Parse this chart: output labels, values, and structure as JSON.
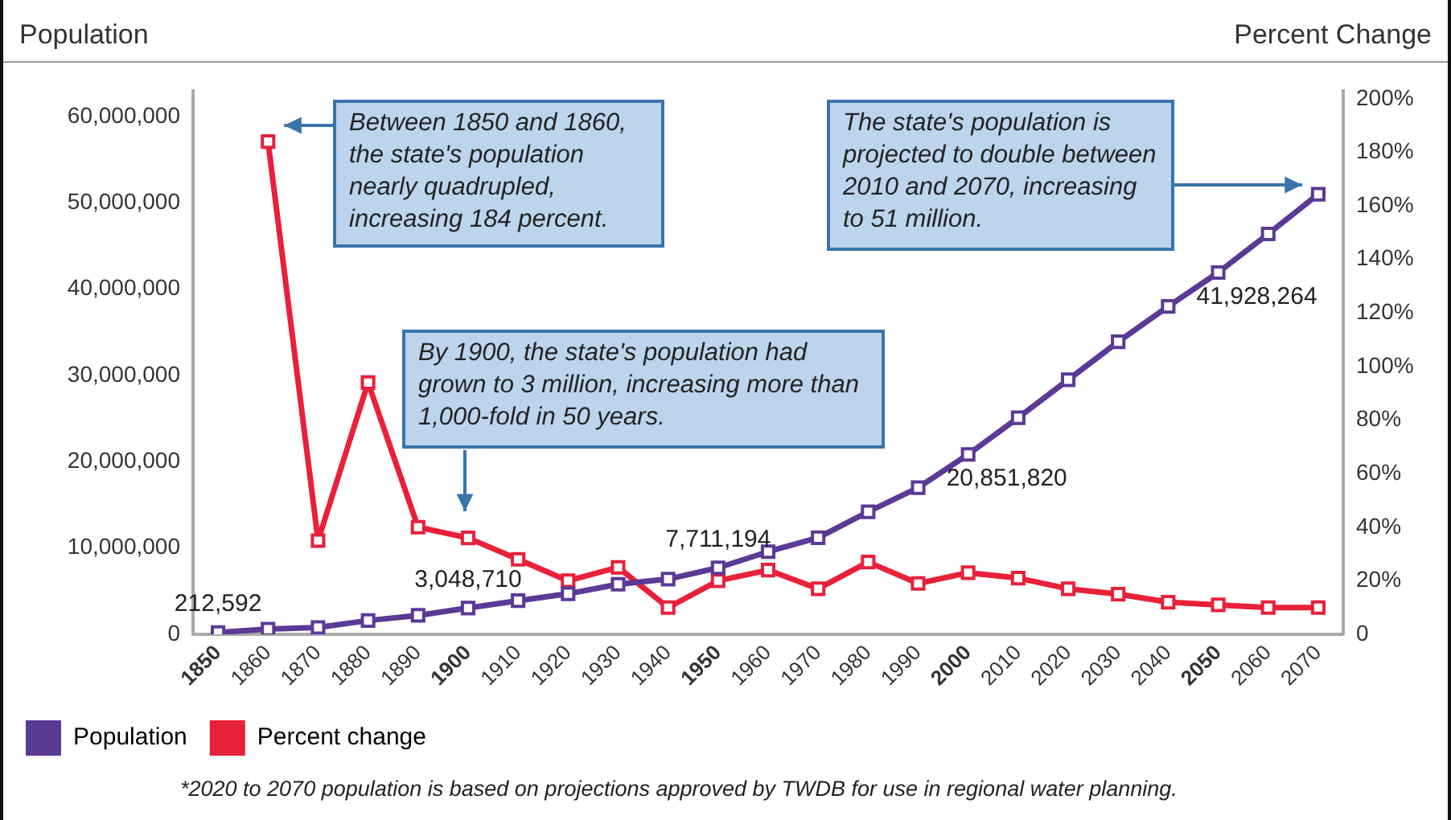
{
  "chart_data": {
    "type": "line",
    "ylabel": "Population",
    "y2label": "Percent Change",
    "categories": [
      "1850",
      "1860",
      "1870",
      "1880",
      "1890",
      "1900",
      "1910",
      "1920",
      "1930",
      "1940",
      "1950",
      "1960",
      "1970",
      "1980",
      "1990",
      "2000",
      "2010",
      "2020",
      "2030",
      "2040",
      "2050",
      "2060",
      "2070"
    ],
    "series": [
      {
        "name": "Population",
        "color": "#5b3a96",
        "values": [
          212592,
          600000,
          800000,
          1600000,
          2200000,
          3048710,
          3900000,
          4700000,
          5800000,
          6400000,
          7711194,
          9580000,
          11200000,
          14200000,
          17000000,
          20851820,
          25100000,
          29500000,
          33900000,
          38000000,
          41928264,
          46400000,
          51000000
        ],
        "value_labels": [
          "212,592",
          null,
          null,
          null,
          null,
          "3,048,710",
          null,
          null,
          null,
          null,
          "7,711,194",
          null,
          null,
          null,
          null,
          "20,851,820",
          null,
          null,
          null,
          null,
          "41,928,264",
          null,
          null
        ]
      },
      {
        "name": "Percent change",
        "color": "#e8213a",
        "axis": "y2",
        "values": [
          null,
          184,
          35,
          94,
          40,
          36,
          28,
          20,
          25,
          10,
          20,
          24,
          17,
          27,
          19,
          23,
          21,
          17,
          15,
          12,
          11,
          10,
          10
        ]
      }
    ],
    "ylim": [
      0,
      63000000
    ],
    "yticks": [
      0,
      {
        "value": 10000000,
        "label": "10,000,000"
      },
      {
        "value": 20000000,
        "label": "20,000,000"
      },
      {
        "value": 30000000,
        "label": "30,000,000"
      },
      {
        "value": 40000000,
        "label": "40,000,000"
      },
      {
        "value": 50000000,
        "label": "50,000,000"
      },
      {
        "value": 60000000,
        "label": "60,000,000"
      }
    ],
    "y2lim": [
      0,
      203
    ],
    "y2ticks": [
      0,
      {
        "value": 20,
        "label": "20%"
      },
      {
        "value": 40,
        "label": "40%"
      },
      {
        "value": 60,
        "label": "60%"
      },
      {
        "value": 80,
        "label": "80%"
      },
      {
        "value": 100,
        "label": "100%"
      },
      {
        "value": 120,
        "label": "120%"
      },
      {
        "value": 140,
        "label": "140%"
      },
      {
        "value": 160,
        "label": "160%"
      },
      {
        "value": 180,
        "label": "180%"
      },
      {
        "value": 200,
        "label": "200%"
      }
    ],
    "grid": false,
    "legend": "bottom",
    "marker": "square",
    "line_style": "solid",
    "annotations": [
      "Between 1850 and 1860, the state's population nearly quadrupled, increasing 184 percent.",
      "By 1900, the state's population had grown to 3 million, increasing more than 1,000-fold in 50 years.",
      "The state's population is projected to double between 2010 and 2070, increasing to 51 million.",
      "*2020 to 2070 population is based on projections approved by TWDB for use in regional water planning."
    ]
  }
}
